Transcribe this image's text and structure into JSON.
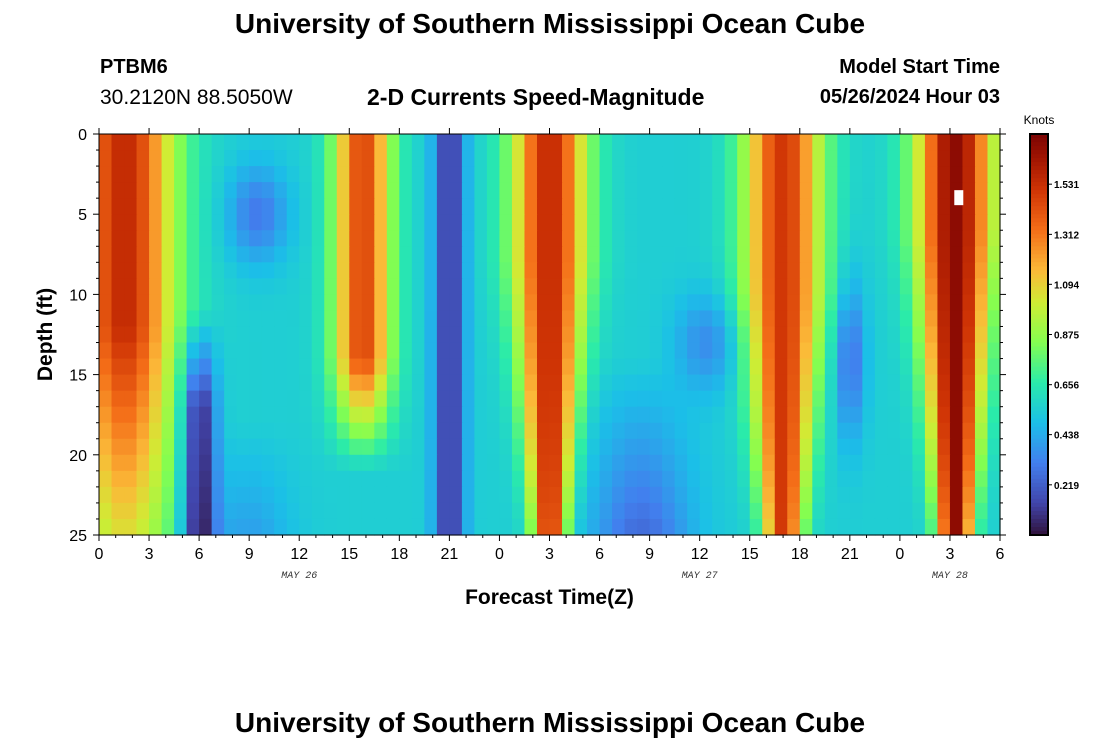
{
  "header": {
    "title": "University of Southern Mississippi Ocean Cube",
    "station_id": "PTBM6",
    "coordinates": "30.2120N  88.5050W",
    "subtitle": "2-D Currents Speed-Magnitude",
    "start_label": "Model Start Time",
    "start_value": "05/26/2024 Hour 03"
  },
  "footer": {
    "title": "University of Southern Mississippi Ocean Cube"
  },
  "chart_data": {
    "type": "heatmap",
    "title": "2-D Currents Speed-Magnitude",
    "xlabel": "Forecast Time(Z)",
    "ylabel": "Depth (ft)",
    "x_ticks": [
      "0",
      "3",
      "6",
      "9",
      "12",
      "15",
      "18",
      "21",
      "0",
      "3",
      "6",
      "9",
      "12",
      "15",
      "18",
      "21",
      "0",
      "3",
      "6"
    ],
    "x_range_hours": [
      0,
      54
    ],
    "day_labels": [
      {
        "label": "MAY 26",
        "hour": 12
      },
      {
        "label": "MAY 27",
        "hour": 36
      },
      {
        "label": "MAY 28",
        "hour": 51
      }
    ],
    "y_ticks": [
      0,
      5,
      10,
      15,
      20,
      25
    ],
    "ylim": [
      0,
      25
    ],
    "y_inverted": true,
    "colorbar": {
      "label": "Knots",
      "ticks": [
        "1.531",
        "1.312",
        "1.094",
        "0.875",
        "0.656",
        "0.438",
        "0.219"
      ],
      "tick_values": [
        1.531,
        1.312,
        1.094,
        0.875,
        0.656,
        0.438,
        0.219
      ],
      "range": [
        0,
        1.75
      ]
    },
    "features_knots": [
      {
        "hour": 1.5,
        "depth": 5,
        "speed": 1.55
      },
      {
        "hour": 6,
        "depth": 19,
        "speed": 0.05
      },
      {
        "hour": 9,
        "depth": 5,
        "speed": 0.35
      },
      {
        "hour": 15.5,
        "depth": 4,
        "speed": 1.4
      },
      {
        "hour": 21,
        "depth": 8,
        "speed": 0.05
      },
      {
        "hour": 27,
        "depth": 10,
        "speed": 1.45
      },
      {
        "hour": 32,
        "depth": 23,
        "speed": 0.1
      },
      {
        "hour": 41,
        "depth": 9,
        "speed": 1.35
      },
      {
        "hour": 45,
        "depth": 14,
        "speed": 0.15
      },
      {
        "hour": 51,
        "depth": 5,
        "speed": 1.7
      }
    ],
    "marker": {
      "hour": 51.5,
      "depth": 4
    }
  }
}
